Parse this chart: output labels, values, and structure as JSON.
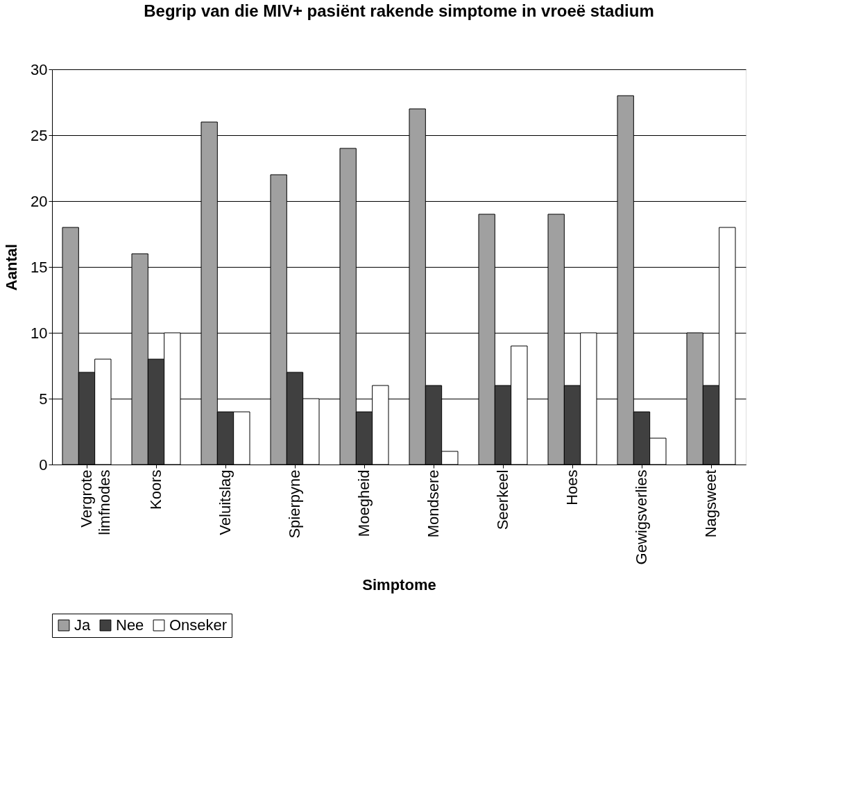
{
  "chart_data": {
    "type": "bar",
    "title": "Begrip van die MIV+ pasiënt rakende simptome in vroeë stadium",
    "xlabel": "Simptome",
    "ylabel": "Aantal",
    "categories": [
      "Vergrote limfnodes",
      "Koors",
      "Veluitslag",
      "Spierpyne",
      "Moegheid",
      "Mondsere",
      "Seerkeel",
      "Hoes",
      "Gewigsverlies",
      "Nagsweet"
    ],
    "series": [
      {
        "name": "Ja",
        "color": "#a0a0a0",
        "values": [
          18,
          16,
          26,
          22,
          24,
          27,
          19,
          19,
          28,
          10
        ]
      },
      {
        "name": "Nee",
        "color": "#404040",
        "values": [
          7,
          8,
          4,
          7,
          4,
          6,
          6,
          6,
          4,
          6
        ]
      },
      {
        "name": "Onseker",
        "color": "#ffffff",
        "values": [
          8,
          10,
          4,
          5,
          6,
          1,
          9,
          10,
          2,
          18
        ]
      }
    ],
    "ylim": [
      0,
      30
    ],
    "yticks": [
      0,
      5,
      10,
      15,
      20,
      25,
      30
    ],
    "grid": "y",
    "legend": "bottom"
  }
}
